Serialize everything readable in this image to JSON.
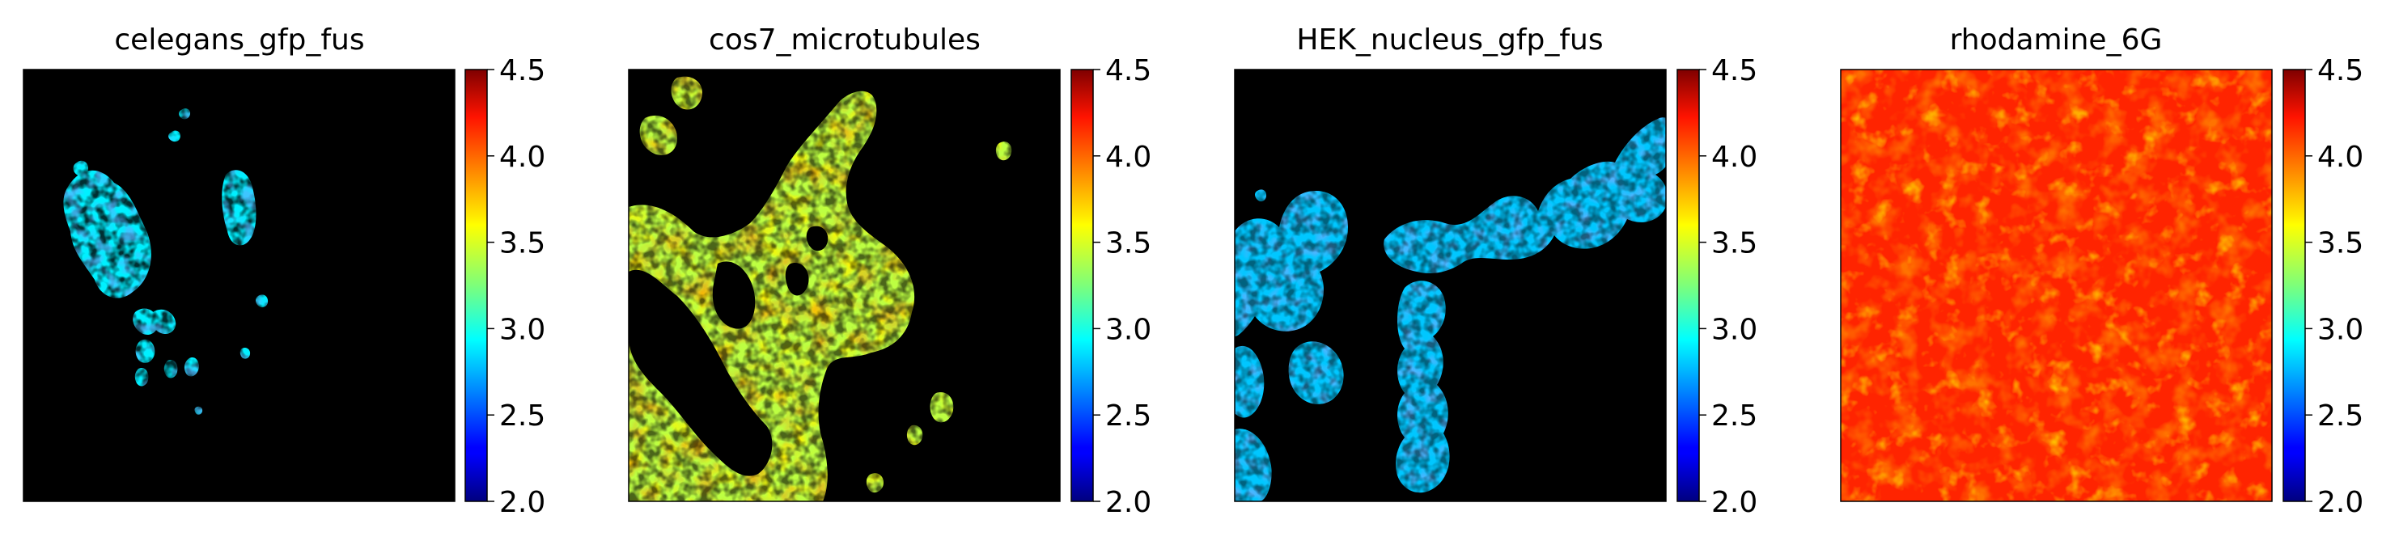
{
  "chart_data": [
    {
      "type": "heatmap",
      "title": "celegans_gfp_fus",
      "colormap": "jet",
      "background": "#000000",
      "clim": [
        2.0,
        4.5
      ],
      "colorbar_ticks": [
        "2.0",
        "2.5",
        "3.0",
        "3.5",
        "4.0",
        "4.5"
      ],
      "typical_value": 2.9,
      "content": "sparse small cell clusters, left half"
    },
    {
      "type": "heatmap",
      "title": "cos7_microtubules",
      "colormap": "jet",
      "background": "#000000",
      "clim": [
        2.0,
        4.5
      ],
      "colorbar_ticks": [
        "2.0",
        "2.5",
        "3.0",
        "3.5",
        "4.0",
        "4.5"
      ],
      "typical_value": 3.4,
      "content": "large branching cell with filament network"
    },
    {
      "type": "heatmap",
      "title": "HEK_nucleus_gfp_fus",
      "colormap": "jet",
      "background": "#000000",
      "clim": [
        2.0,
        4.5
      ],
      "colorbar_ticks": [
        "2.0",
        "2.5",
        "3.0",
        "3.5",
        "4.0",
        "4.5"
      ],
      "typical_value": 2.8,
      "content": "several rounded nuclei"
    },
    {
      "type": "heatmap",
      "title": "rhodamine_6G",
      "colormap": "jet",
      "background": "#000000",
      "clim": [
        2.0,
        4.5
      ],
      "colorbar_ticks": [
        "2.0",
        "2.5",
        "3.0",
        "3.5",
        "4.0",
        "4.5"
      ],
      "typical_value": 4.1,
      "content": "uniform field"
    }
  ]
}
